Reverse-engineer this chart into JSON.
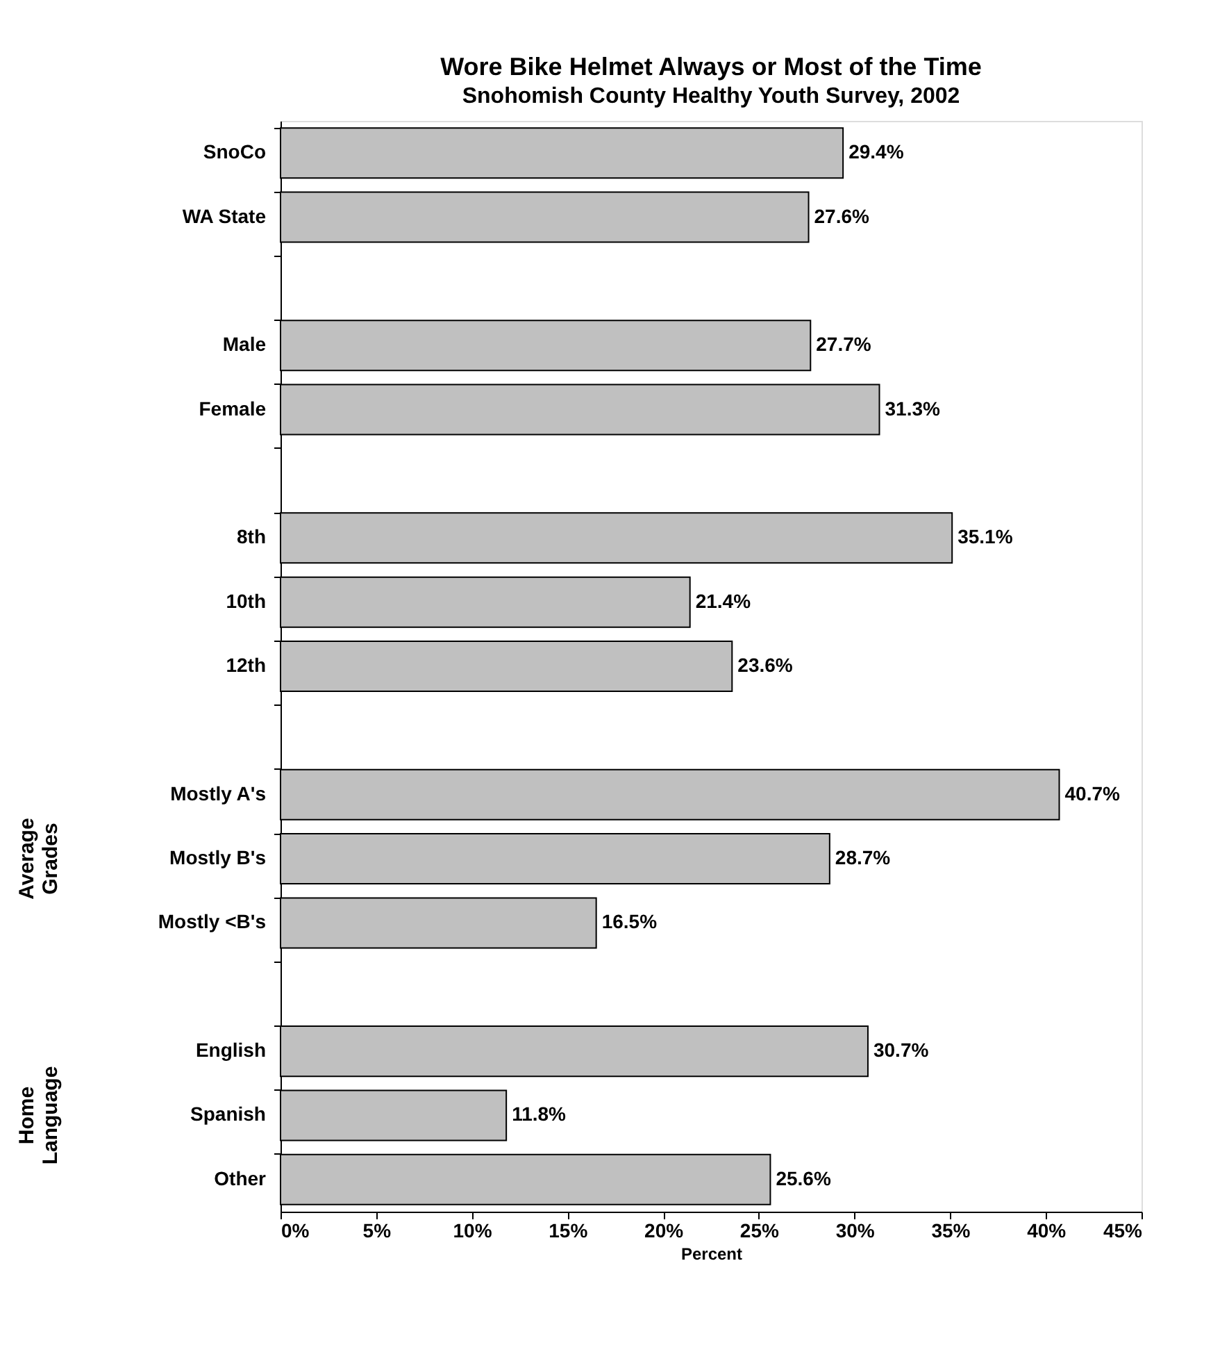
{
  "chart_data": {
    "type": "bar",
    "orientation": "horizontal",
    "title": "Wore Bike Helmet Always or Most of the Time",
    "subtitle": "Snohomish County Healthy Youth Survey, 2002",
    "xlabel": "Percent",
    "categories": [
      "SnoCo",
      "WA State",
      null,
      "Male",
      "Female",
      null,
      "8th",
      "10th",
      "12th",
      null,
      "Mostly A's",
      "Mostly B's",
      "Mostly <B's",
      null,
      "English",
      "Spanish",
      "Other"
    ],
    "values": [
      29.4,
      27.6,
      null,
      27.7,
      31.3,
      null,
      35.1,
      21.4,
      23.6,
      null,
      40.7,
      28.7,
      16.5,
      null,
      30.7,
      11.8,
      25.6
    ],
    "value_labels": [
      "29.4%",
      "27.6%",
      null,
      "27.7%",
      "31.3%",
      null,
      "35.1%",
      "21.4%",
      "23.6%",
      null,
      "40.7%",
      "28.7%",
      "16.5%",
      null,
      "30.7%",
      "11.8%",
      "25.6%"
    ],
    "color": "#c0c0c0",
    "xlim": [
      0,
      45
    ],
    "xticks": [
      {
        "value": 0,
        "label": "0%"
      },
      {
        "value": 5,
        "label": "5%"
      },
      {
        "value": 10,
        "label": "10%"
      },
      {
        "value": 15,
        "label": "15%"
      },
      {
        "value": 20,
        "label": "20%"
      },
      {
        "value": 25,
        "label": "25%"
      },
      {
        "value": 30,
        "label": "30%"
      },
      {
        "value": 35,
        "label": "35%"
      },
      {
        "value": 40,
        "label": "40%"
      },
      {
        "value": 45,
        "label": "45%"
      }
    ],
    "grid": false,
    "annotations": [
      "Average Grades",
      "Home Language"
    ]
  }
}
